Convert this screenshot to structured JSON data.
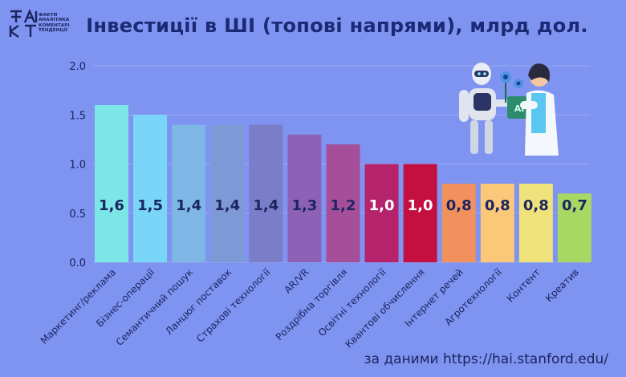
{
  "logo": {
    "lines": [
      "ФАКТИ",
      "АНАЛІТИКА",
      "КОМЕНТАРІ",
      "ТЕНДЕНЦІЇ"
    ]
  },
  "title": "Інвестиції в ШІ (топові напрями), млрд дол.",
  "source": "за даними https://hai.stanford.edu/",
  "illustration": {
    "badge_text": "AI"
  },
  "chart_data": {
    "type": "bar",
    "title": "Інвестиції в ШІ (топові напрями), млрд дол.",
    "xlabel": "",
    "ylabel": "",
    "ylim": [
      0,
      2.0
    ],
    "yticks": [
      "0.0",
      "0.5",
      "1.0",
      "1.5",
      "2.0"
    ],
    "grid": true,
    "categories": [
      "Маркетинг/реклама",
      "Бізнес-операції",
      "Семантичний пошук",
      "Ланцюг поставок",
      "Страхові технології",
      "AR/VR",
      "Роздрібна торгівля",
      "Освітні технології",
      "Квантові обчислення",
      "Інтернет речей",
      "Агротехнології",
      "Контент",
      "Креатив"
    ],
    "values": [
      1.6,
      1.5,
      1.4,
      1.4,
      1.4,
      1.3,
      1.2,
      1.0,
      1.0,
      0.8,
      0.8,
      0.8,
      0.7
    ],
    "value_labels": [
      "1,6",
      "1,5",
      "1,4",
      "1,4",
      "1,4",
      "1,3",
      "1,2",
      "1,0",
      "1,0",
      "0,8",
      "0,8",
      "0,8",
      "0,7"
    ],
    "colors": [
      "#7ce6e6",
      "#79d6f8",
      "#7eb6e6",
      "#7d99d6",
      "#7a7ec9",
      "#8d62b6",
      "#a54e9a",
      "#b4236c",
      "#c31040",
      "#f2915d",
      "#fbc779",
      "#efe27a",
      "#a8d864"
    ],
    "label_colors": [
      "#1b2560",
      "#1b2560",
      "#1b2560",
      "#1b2560",
      "#1b2560",
      "#1b2560",
      "#1b2560",
      "#ffffff",
      "#ffffff",
      "#1b2560",
      "#1b2560",
      "#1b2560",
      "#1b2560"
    ]
  }
}
